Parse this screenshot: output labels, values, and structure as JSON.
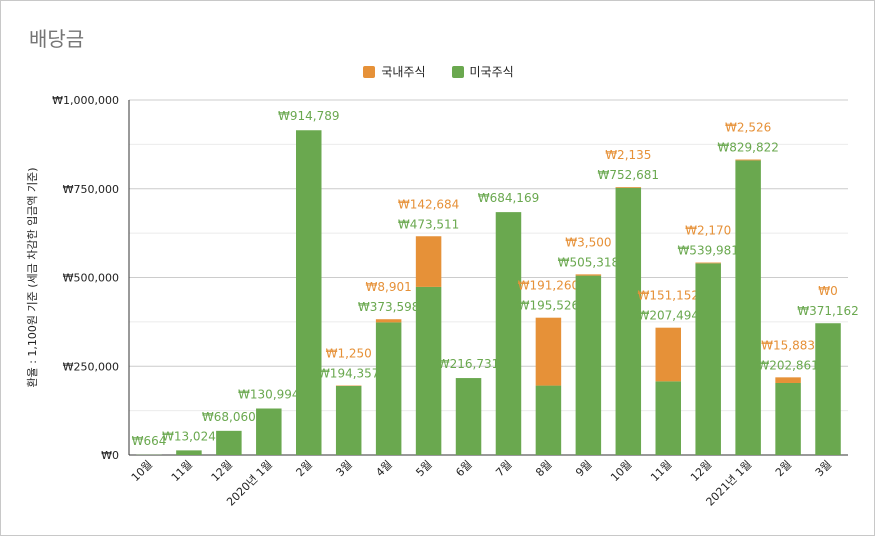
{
  "chart_data": {
    "type": "bar",
    "stacked": true,
    "title": "배당금",
    "ylabel": "환율 : 1,100원 기준 (세금 차감한 입금액 기준)",
    "ylim": [
      0,
      1000000
    ],
    "yticks": [
      0,
      250000,
      500000,
      750000,
      1000000
    ],
    "ytick_labels": [
      "₩0",
      "₩250,000",
      "₩500,000",
      "₩750,000",
      "₩1,000,000"
    ],
    "grid": true,
    "legend_position": "top",
    "categories": [
      "10월",
      "11월",
      "12월",
      "2020년 1월",
      "2월",
      "3월",
      "4월",
      "5월",
      "6월",
      "7월",
      "8월",
      "9월",
      "10월",
      "11월",
      "12월",
      "2021년 1월",
      "2월",
      "3월"
    ],
    "series": [
      {
        "name": "미국주식",
        "color": "#6aa84f",
        "values": [
          664,
          13024,
          68060,
          130994,
          914789,
          194357,
          373598,
          473511,
          216731,
          684169,
          195526,
          505318,
          752681,
          207494,
          539981,
          829822,
          202861,
          371162
        ],
        "labels": [
          "₩664",
          "₩13,024",
          "₩68,060",
          "₩130,994",
          "₩914,789",
          "₩194,357",
          "₩373,598",
          "₩473,511",
          "₩216,731",
          "₩684,169",
          "₩195,526",
          "₩505,318",
          "₩752,681",
          "₩207,494",
          "₩539,981",
          "₩829,822",
          "₩202,861",
          "₩371,162"
        ]
      },
      {
        "name": "국내주식",
        "color": "#e69138",
        "values": [
          null,
          null,
          null,
          null,
          null,
          1250,
          8901,
          142684,
          null,
          null,
          191260,
          3500,
          2135,
          151152,
          2170,
          2526,
          15883,
          0
        ],
        "labels": [
          null,
          null,
          null,
          null,
          null,
          "₩1,250",
          "₩8,901",
          "₩142,684",
          null,
          null,
          "₩191,260",
          "₩3,500",
          "₩2,135",
          "₩151,152",
          "₩2,170",
          "₩2,526",
          "₩15,883",
          "₩0"
        ]
      }
    ]
  }
}
